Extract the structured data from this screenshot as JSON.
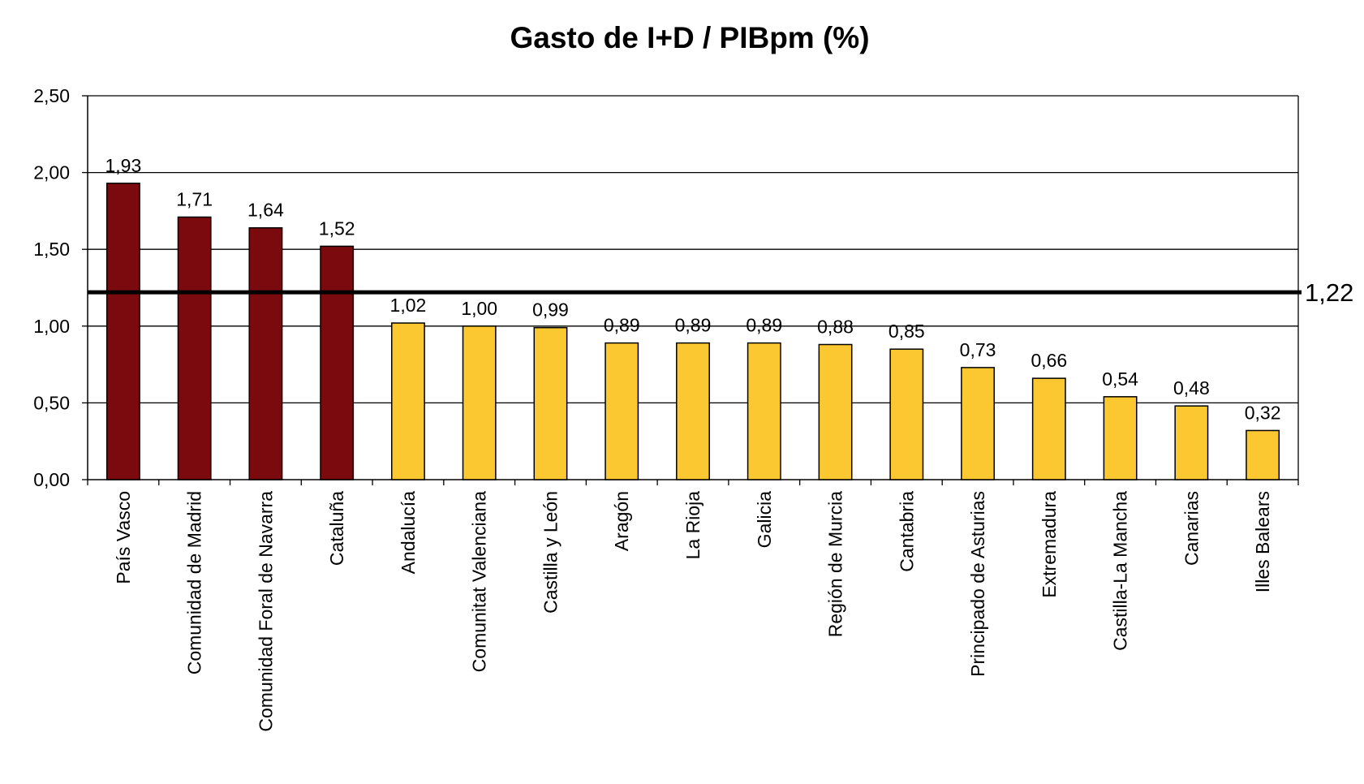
{
  "chart_data": {
    "type": "bar",
    "title": "Gasto de I+D / PIBpm (%)",
    "xlabel": "",
    "ylabel": "",
    "ylim": [
      0,
      2.5
    ],
    "y_ticks": [
      0,
      0.5,
      1,
      1.5,
      2,
      2.5
    ],
    "y_tick_labels": [
      "0,00",
      "0,50",
      "1,00",
      "1,50",
      "2,00",
      "2,50"
    ],
    "grid": true,
    "legend": "none",
    "categories": [
      "País Vasco",
      "Comunidad de Madrid",
      "Comunidad Foral de Navarra",
      "Cataluña",
      "Andalucía",
      "Comunitat Valenciana",
      "Castilla y León",
      "Aragón",
      "La Rioja",
      "Galicia",
      "Región de Murcia",
      "Cantabria",
      "Principado de Asturias",
      "Extremadura",
      "Castilla-La Mancha",
      "Canarias",
      "Illes Balears"
    ],
    "values": [
      1.93,
      1.71,
      1.64,
      1.52,
      1.02,
      1.0,
      0.99,
      0.89,
      0.89,
      0.89,
      0.88,
      0.85,
      0.73,
      0.66,
      0.54,
      0.48,
      0.32
    ],
    "value_labels": [
      "1,93",
      "1,71",
      "1,64",
      "1,52",
      "1,02",
      "1,00",
      "0,99",
      "0,89",
      "0,89",
      "0,89",
      "0,88",
      "0,85",
      "0,73",
      "0,66",
      "0,54",
      "0,48",
      "0,32"
    ],
    "bar_colors": [
      "#7b0a0f",
      "#7b0a0f",
      "#7b0a0f",
      "#7b0a0f",
      "#fcc832",
      "#fcc832",
      "#fcc832",
      "#fcc832",
      "#fcc832",
      "#fcc832",
      "#fcc832",
      "#fcc832",
      "#fcc832",
      "#fcc832",
      "#fcc832",
      "#fcc832",
      "#fcc832"
    ],
    "reference_line": {
      "value": 1.22,
      "label": "1,22"
    }
  }
}
